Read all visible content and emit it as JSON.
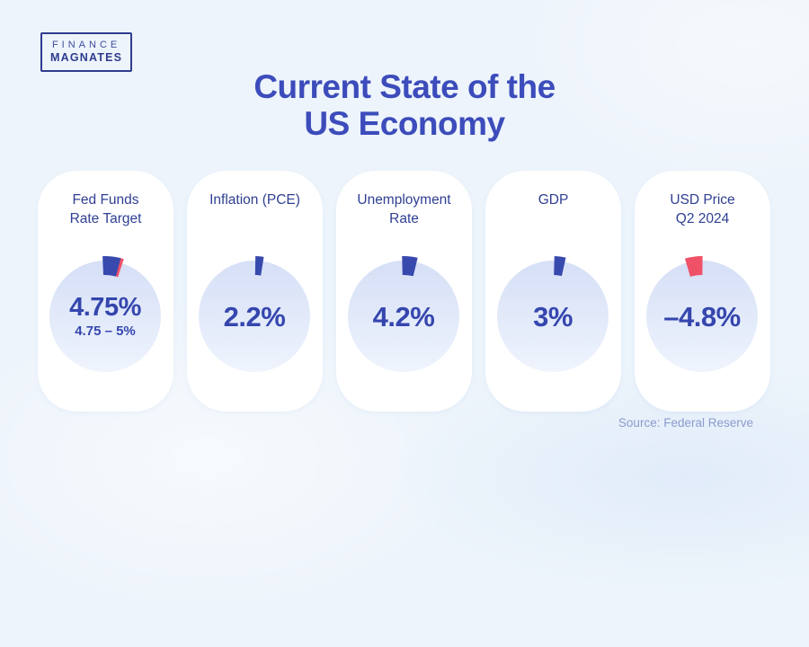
{
  "logo": {
    "top": "FINANCE",
    "bottom": "MAGNATES"
  },
  "title": {
    "line1": "Current State of the",
    "line2": "US Economy"
  },
  "page": {
    "background": "#edf4fb",
    "source_note": "Source: Federal Reserve"
  },
  "colors": {
    "title_blue": "#3c4cbb",
    "label_navy": "#2f3f92",
    "value_blue": "#3546ae",
    "wedge_blue": "#3849ae",
    "wedge_red": "#ef5168",
    "circle_gradient_top": "#d5dff6",
    "circle_gradient_bottom": "#eff4fd",
    "card_bg": "#ffffff"
  },
  "chart_data": {
    "type": "pie",
    "subtype": "gauge-cards",
    "title": "Current State of the US Economy",
    "source": "Source: Federal Reserve",
    "legend_position": "none",
    "cards": [
      {
        "label_lines": [
          "Fed Funds",
          "Rate Target"
        ],
        "value": "4.75%",
        "range": "4.75 – 5%",
        "percent": 4.75,
        "wedges": [
          {
            "start_deg": 13.5,
            "end_deg": 18.0,
            "color": "#ef5168"
          },
          {
            "start_deg": -2.5,
            "end_deg": 15.0,
            "color": "#3849ae"
          }
        ]
      },
      {
        "label_lines": [
          "Inflation (PCE)"
        ],
        "value": "2.2%",
        "range": null,
        "percent": 2.2,
        "wedges": [
          {
            "start_deg": 1.0,
            "end_deg": 9.0,
            "color": "#3849ae"
          }
        ]
      },
      {
        "label_lines": [
          "Unemployment",
          "Rate"
        ],
        "value": "4.2%",
        "range": null,
        "percent": 4.2,
        "wedges": [
          {
            "start_deg": -1.5,
            "end_deg": 13.5,
            "color": "#3849ae"
          }
        ]
      },
      {
        "label_lines": [
          "GDP"
        ],
        "value": "3%",
        "range": null,
        "percent": 3.0,
        "wedges": [
          {
            "start_deg": 1.5,
            "end_deg": 12.5,
            "color": "#3849ae"
          }
        ]
      },
      {
        "label_lines": [
          "USD Price",
          "Q2 2024"
        ],
        "value": "–4.8%",
        "range": null,
        "percent": -4.8,
        "wedges": [
          {
            "start_deg": -16.5,
            "end_deg": 0.5,
            "color": "#ef5168"
          }
        ]
      }
    ],
    "gauge_geometry": {
      "circle_radius": 62,
      "wedge_outer_radius": 67,
      "wedge_inner_radius": 46
    }
  }
}
